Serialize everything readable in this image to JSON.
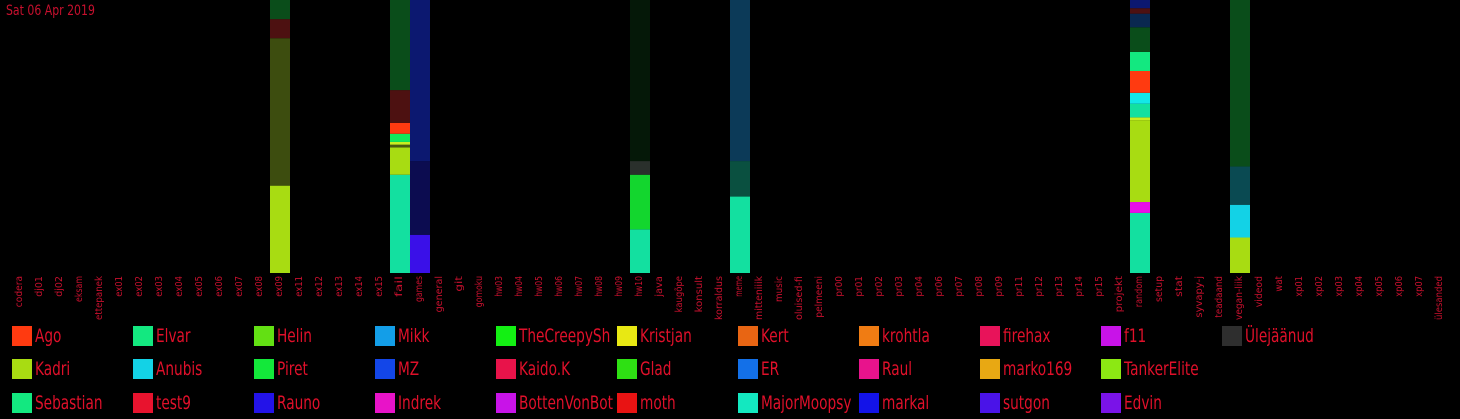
{
  "date_label": "Sat 06 Apr 2019",
  "chart_data": {
    "type": "bar",
    "stacked": true,
    "categories": [
      "codera",
      "dj01",
      "dj02",
      "eksam",
      "ettepanek",
      "ex01",
      "ex02",
      "ex03",
      "ex04",
      "ex05",
      "ex06",
      "ex07",
      "ex08",
      "ex09",
      "ex11",
      "ex12",
      "ex13",
      "ex14",
      "ex15",
      "fail",
      "games",
      "general",
      "git",
      "gomoku",
      "hw03",
      "hw04",
      "hw05",
      "hw06",
      "hw07",
      "hw08",
      "hw09",
      "hw10",
      "java",
      "kaugõpe",
      "konsult",
      "korraldus",
      "meme",
      "mitteniiik",
      "music",
      "oluised-fi",
      "pelmeeni",
      "pr00",
      "pr01",
      "pr02",
      "pr03",
      "pr04",
      "pr06",
      "pr07",
      "pr08",
      "pr09",
      "pr11",
      "pr12",
      "pr13",
      "pr14",
      "pr15",
      "projekt",
      "random",
      "setup",
      "stat",
      "syvapy-j",
      "teadaand",
      "vegan-liik",
      "videod",
      "wat",
      "xp01",
      "xp02",
      "xp03",
      "xp04",
      "xp05",
      "xp06",
      "xp07",
      "ülesanded"
    ],
    "bars": [
      {
        "category": "ex09",
        "segments": [
          {
            "color": "#a8dc12",
            "value": 32
          },
          {
            "color": "#3d4d0f",
            "value": 54
          },
          {
            "color": "#4d1111",
            "value": 7
          },
          {
            "color": "#0a4d1a",
            "value": 7
          }
        ]
      },
      {
        "category": "fail",
        "segments": [
          {
            "color": "#13e0a0",
            "value": 36
          },
          {
            "color": "#a8dc12",
            "value": 10
          },
          {
            "color": "#4a5c10",
            "value": 1
          },
          {
            "color": "#c8ee20",
            "value": 1
          },
          {
            "color": "#13e85a",
            "value": 3
          },
          {
            "color": "#ff3a10",
            "value": 4
          },
          {
            "color": "#4d1111",
            "value": 12
          },
          {
            "color": "#0a4d1a",
            "value": 33
          }
        ]
      },
      {
        "category": "games",
        "segments": [
          {
            "color": "#3a10e8",
            "value": 14
          },
          {
            "color": "#0c0c50",
            "value": 27
          },
          {
            "color": "#0c1870",
            "value": 59
          }
        ]
      },
      {
        "category": "hw10",
        "segments": [
          {
            "color": "#13e0a0",
            "value": 16
          },
          {
            "color": "#13d62e",
            "value": 20
          },
          {
            "color": "#2a302c",
            "value": 5
          },
          {
            "color": "#051808",
            "value": 59
          }
        ]
      },
      {
        "category": "meme",
        "segments": [
          {
            "color": "#13e0a0",
            "value": 28
          },
          {
            "color": "#0a5040",
            "value": 13
          },
          {
            "color": "#0c3a58",
            "value": 59
          }
        ]
      },
      {
        "category": "random",
        "segments": [
          {
            "color": "#13e0a0",
            "value": 22
          },
          {
            "color": "#e810e8",
            "value": 4
          },
          {
            "color": "#a8dc12",
            "value": 30
          },
          {
            "color": "#c8ee20",
            "value": 1
          },
          {
            "color": "#13e0a0",
            "value": 5
          },
          {
            "color": "#13e8e8",
            "value": 4
          },
          {
            "color": "#ff3a10",
            "value": 8
          },
          {
            "color": "#13e880",
            "value": 7
          },
          {
            "color": "#0a4d1a",
            "value": 9
          },
          {
            "color": "#0a2850",
            "value": 5
          },
          {
            "color": "#4d1111",
            "value": 2
          },
          {
            "color": "#0c1870",
            "value": 3
          }
        ]
      },
      {
        "category": "vegan-liik",
        "segments": [
          {
            "color": "#a8dc12",
            "value": 13
          },
          {
            "color": "#13d2e6",
            "value": 12
          },
          {
            "color": "#0a4a52",
            "value": 14
          },
          {
            "color": "#0a4d1a",
            "value": 61
          }
        ]
      }
    ]
  },
  "legend": [
    {
      "label": "Ago",
      "color": "#ff3a10"
    },
    {
      "label": "Elvar",
      "color": "#13e880"
    },
    {
      "label": "Helin",
      "color": "#63e013"
    },
    {
      "label": "Mikk",
      "color": "#139ee8"
    },
    {
      "label": "TheCreepySh",
      "color": "#13f013"
    },
    {
      "label": "Kristjan",
      "color": "#e8e813"
    },
    {
      "label": "Kert",
      "color": "#e86513"
    },
    {
      "label": "krohtla",
      "color": "#f07c13"
    },
    {
      "label": "firehax",
      "color": "#e8135a"
    },
    {
      "label": "f11",
      "color": "#c813e8"
    },
    {
      "label": "Ülejäänud",
      "color": "#2e2e2e"
    },
    {
      "label": "Kadri",
      "color": "#a8dc12"
    },
    {
      "label": "Anubis",
      "color": "#13d2e6"
    },
    {
      "label": "Piret",
      "color": "#13e83a"
    },
    {
      "label": "MZ",
      "color": "#1346e8"
    },
    {
      "label": "Kaido.K",
      "color": "#e8134a"
    },
    {
      "label": "Glad",
      "color": "#2ee013"
    },
    {
      "label": "ER",
      "color": "#1370e8"
    },
    {
      "label": "Raul",
      "color": "#e8138c"
    },
    {
      "label": "marko169",
      "color": "#e8a813"
    },
    {
      "label": "TankerElite",
      "color": "#8ce813"
    },
    {
      "label": "Sebastian",
      "color": "#13e880"
    },
    {
      "label": "test9",
      "color": "#e8132e"
    },
    {
      "label": "Rauno",
      "color": "#2313e8"
    },
    {
      "label": "Indrek",
      "color": "#e813c8"
    },
    {
      "label": "BottenVonBot",
      "color": "#c813e8"
    },
    {
      "label": "moth",
      "color": "#e81313"
    },
    {
      "label": "MajorMoopsy",
      "color": "#13e8c0"
    },
    {
      "label": "markal",
      "color": "#1313e8"
    },
    {
      "label": "sutgon",
      "color": "#4a13e8"
    },
    {
      "label": "Edvin",
      "color": "#7a13e8"
    }
  ]
}
